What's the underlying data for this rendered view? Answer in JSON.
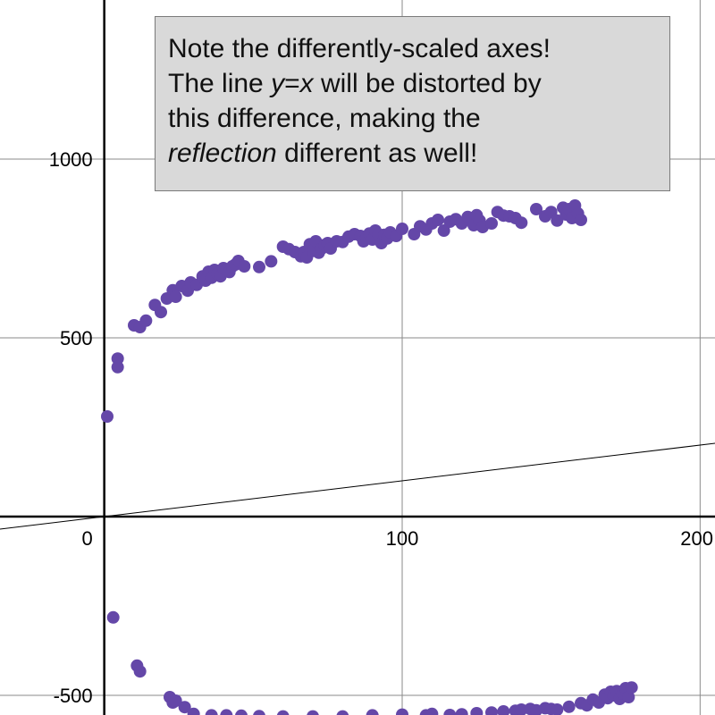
{
  "chart_data": {
    "type": "scatter",
    "title": "",
    "xlabel": "",
    "ylabel": "",
    "xlim": [
      -35,
      205
    ],
    "ylim": [
      -555,
      1445
    ],
    "grid": true,
    "x_ticks": [
      100,
      200
    ],
    "x_tick_labels": [
      "100",
      "200"
    ],
    "y_ticks": [
      1000,
      500,
      -500
    ],
    "y_tick_labels": [
      "1000",
      "500",
      "-500"
    ],
    "origin_label": "0",
    "colors": {
      "points": "#6447a8",
      "grid": "#8a8a8a",
      "axes": "#000000",
      "line": "#000000"
    },
    "series": [
      {
        "type": "scatter",
        "x": [
          1,
          4.5,
          4.5,
          10,
          12,
          14,
          17,
          19,
          21,
          23,
          24,
          26,
          28,
          29,
          31,
          33,
          34,
          35,
          36,
          37,
          38,
          39,
          40,
          41,
          42,
          43,
          44,
          45,
          47,
          52,
          56,
          60,
          62,
          64,
          66,
          67,
          68,
          69,
          70,
          71,
          72,
          73,
          74,
          75,
          76,
          78,
          80,
          82,
          84,
          86,
          87,
          88,
          89,
          90,
          91,
          92,
          93,
          94,
          95,
          96,
          98,
          100,
          104,
          106,
          108,
          110,
          112,
          114,
          116,
          118,
          120,
          122,
          124,
          125,
          126,
          127,
          130,
          132,
          134,
          136,
          138,
          140,
          145,
          148,
          150,
          152,
          154,
          155,
          156,
          157,
          158,
          159,
          160
        ],
        "y": [
          280,
          442,
          418,
          535,
          530,
          548,
          592,
          572,
          610,
          633,
          615,
          645,
          632,
          655,
          648,
          672,
          660,
          685,
          668,
          690,
          678,
          672,
          695,
          688,
          684,
          700,
          705,
          715,
          700,
          698,
          714,
          755,
          748,
          740,
          728,
          740,
          725,
          762,
          743,
          770,
          738,
          750,
          760,
          765,
          750,
          770,
          768,
          783,
          790,
          785,
          770,
          780,
          792,
          775,
          800,
          790,
          765,
          788,
          778,
          795,
          785,
          805,
          790,
          812,
          803,
          820,
          830,
          800,
          825,
          832,
          820,
          838,
          815,
          843,
          828,
          810,
          820,
          852,
          842,
          840,
          835,
          822,
          860,
          840,
          852,
          828,
          864,
          845,
          860,
          835,
          870,
          848,
          830
        ]
      },
      {
        "type": "scatter",
        "x": [
          3,
          11,
          12,
          22,
          23,
          24,
          27,
          30,
          36,
          41,
          46,
          52,
          60,
          70,
          80,
          90,
          100,
          108,
          110,
          116,
          120,
          125,
          130,
          134,
          138,
          140,
          143,
          145,
          148,
          150,
          152,
          156,
          160,
          162,
          164,
          166,
          168,
          169,
          170,
          171,
          172,
          173,
          174,
          175,
          176,
          177
        ],
        "y": [
          -282,
          -417,
          -433,
          -505,
          -520,
          -515,
          -533,
          -552,
          -556,
          -556,
          -557,
          -558,
          -559,
          -559,
          -559,
          -556,
          -554,
          -556,
          -552,
          -555,
          -553,
          -550,
          -548,
          -545,
          -543,
          -540,
          -538,
          -542,
          -536,
          -538,
          -540,
          -532,
          -522,
          -528,
          -512,
          -520,
          -498,
          -508,
          -490,
          -500,
          -488,
          -510,
          -495,
          -480,
          -505,
          -478
        ]
      }
    ],
    "reference_line": {
      "label": "y=x",
      "slope": 1,
      "intercept": 0
    }
  },
  "note": {
    "line1": "Note the differently-scaled axes!",
    "line2_pre": "The line ",
    "line2_em": "y",
    "line2_eq": "=",
    "line2_em2": "x",
    "line2_post": " will be distorted by",
    "line3": "this difference, making the",
    "line4_em": "reflection",
    "line4_post": " different as well!"
  }
}
